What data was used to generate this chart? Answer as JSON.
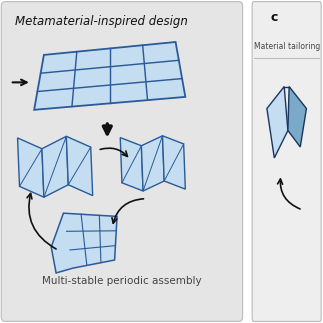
{
  "panel_a_label": "Metamaterial-inspired design",
  "panel_c_label": "c",
  "material_tailoring_label": "Material tailoring",
  "multi_stable_label": "Multi-stable periodic assembly",
  "bg_color_a": "#e5e5e5",
  "bg_color_c": "#eeeeee",
  "border_color": "#bbbbbb",
  "blue_fill": "#c5ddf0",
  "blue_edge": "#2a5a9a",
  "arrow_color": "#111111",
  "text_color": "#444444",
  "label_color": "#111111",
  "fig_bg": "#ffffff",
  "grid_rows": 3,
  "grid_cols": 4
}
